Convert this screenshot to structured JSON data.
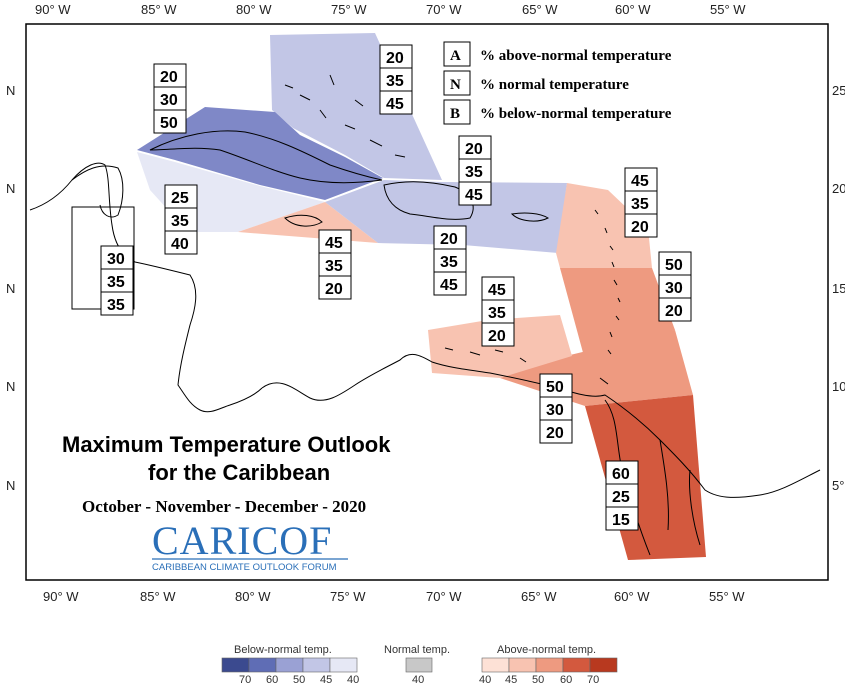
{
  "map": {
    "title_line1": "Maximum Temperature Outlook",
    "title_line2": "for the Caribbean",
    "period": "October - November - December - 2020",
    "logo_text": "CARICOF",
    "logo_subtitle": "CARIBBEAN CLIMATE OUTLOOK FORUM",
    "longitude_ticks": [
      "90° W",
      "85° W",
      "80° W",
      "75° W",
      "70° W",
      "65° W",
      "60° W",
      "55° W"
    ],
    "latitude_ticks_left": [
      "N",
      "N",
      "N",
      "N",
      "N"
    ],
    "latitude_ticks_right": [
      "25",
      "20",
      "15",
      "10",
      "5°"
    ],
    "legend": [
      {
        "letter": "A",
        "text": "% above-normal temperature"
      },
      {
        "letter": "N",
        "text": "% normal temperature"
      },
      {
        "letter": "B",
        "text": "% below-normal temperature"
      }
    ],
    "regions": [
      {
        "id": "bahamas",
        "probs": [
          "20",
          "35",
          "45"
        ],
        "color": "#c2c6e6"
      },
      {
        "id": "cuba",
        "probs": [
          "20",
          "30",
          "50"
        ],
        "color": "#7f88c7"
      },
      {
        "id": "gulf-honduras",
        "probs": [
          "25",
          "35",
          "40"
        ],
        "color": "#e6e8f5"
      },
      {
        "id": "belize",
        "probs": [
          "30",
          "35",
          "35"
        ],
        "color": "#ffffff"
      },
      {
        "id": "jamaica",
        "probs": [
          "45",
          "35",
          "20"
        ],
        "color": "#f8c3b1"
      },
      {
        "id": "hispaniola",
        "probs": [
          "20",
          "35",
          "45"
        ],
        "color": "#c2c6e6"
      },
      {
        "id": "puerto-rico",
        "probs": [
          "20",
          "35",
          "45"
        ],
        "color": "#c2c6e6"
      },
      {
        "id": "leeward-islands",
        "probs": [
          "45",
          "35",
          "20"
        ],
        "color": "#f8c3b1"
      },
      {
        "id": "windward-islands",
        "probs": [
          "50",
          "30",
          "20"
        ],
        "color": "#ee9a80"
      },
      {
        "id": "abc-islands",
        "probs": [
          "45",
          "35",
          "20"
        ],
        "color": "#f8c3b1"
      },
      {
        "id": "trinidad-tobago",
        "probs": [
          "50",
          "30",
          "20"
        ],
        "color": "#ee9a80"
      },
      {
        "id": "guianas",
        "probs": [
          "60",
          "25",
          "15"
        ],
        "color": "#d3593e"
      }
    ],
    "scale": {
      "below_label": "Below-normal temp.",
      "normal_label": "Normal temp.",
      "above_label": "Above-normal temp.",
      "below_colors": [
        "#3b4a8f",
        "#5f6db5",
        "#9aa1d4",
        "#c2c6e6",
        "#e6e8f5"
      ],
      "below_ticks": [
        "70",
        "60",
        "50",
        "45",
        "40"
      ],
      "normal_color": "#c8c8c8",
      "normal_tick": "40",
      "above_colors": [
        "#fde1d6",
        "#f8c3b1",
        "#ee9a80",
        "#d3593e",
        "#b8391f"
      ],
      "above_ticks": [
        "40",
        "45",
        "50",
        "60",
        "70"
      ]
    }
  }
}
